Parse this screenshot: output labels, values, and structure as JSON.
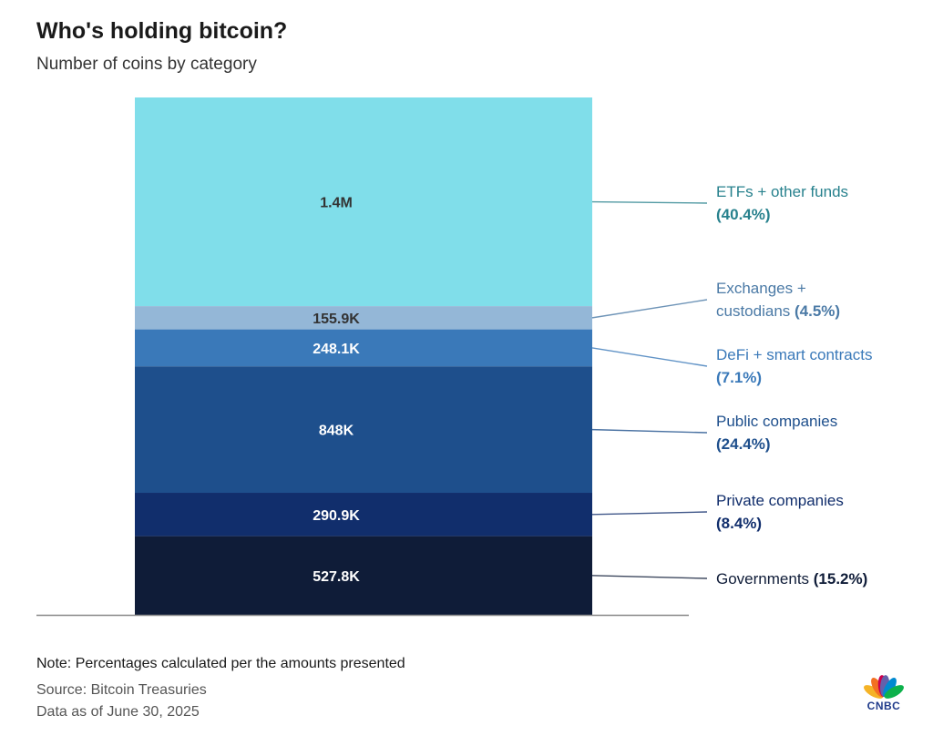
{
  "header": {
    "title": "Who's holding bitcoin?",
    "subtitle": "Number of coins by category"
  },
  "chart_data": {
    "type": "bar",
    "stacked": true,
    "categories": [
      {
        "label_line1": "ETFs + other funds",
        "label_line2": "",
        "pct": "(40.4%)",
        "value": 1400000,
        "value_label": "1.4M",
        "color": "#80deea",
        "label_color": "#27818d",
        "value_text_color": "#333333"
      },
      {
        "label_line1": "Exchanges +",
        "label_line2": "custodians",
        "pct": "(4.5%)",
        "value": 155900,
        "value_label": "155.9K",
        "color": "#94b7d7",
        "label_color": "#4b7aa6",
        "value_text_color": "#333333"
      },
      {
        "label_line1": "DeFi + smart contracts",
        "label_line2": "",
        "pct": "(7.1%)",
        "value": 248100,
        "value_label": "248.1K",
        "color": "#3a79b9",
        "label_color": "#3a79b9",
        "value_text_color": "#ffffff"
      },
      {
        "label_line1": "Public companies",
        "label_line2": "",
        "pct": "(24.4%)",
        "value": 848000,
        "value_label": "848K",
        "color": "#1e4f8c",
        "label_color": "#1e4f8c",
        "value_text_color": "#ffffff"
      },
      {
        "label_line1": "Private companies",
        "label_line2": "",
        "pct": "(8.4%)",
        "value": 290900,
        "value_label": "290.9K",
        "color": "#112e6c",
        "label_color": "#112e6c",
        "value_text_color": "#ffffff"
      },
      {
        "label_line1": "Governments",
        "label_line2": "",
        "pct": "(15.2%)",
        "value": 527800,
        "value_label": "527.8K",
        "color": "#0f1c38",
        "label_color": "#0f1c38",
        "value_text_color": "#ffffff"
      }
    ],
    "title": "Who's holding bitcoin?",
    "subtitle": "Number of coins by category",
    "legend_placement": "right"
  },
  "footer": {
    "note": "Note: Percentages calculated per the amounts presented",
    "source": "Source: Bitcoin Treasuries",
    "date": "Data as of June 30, 2025"
  },
  "logo": {
    "text": "CNBC",
    "petal_colors": [
      "#f5b326",
      "#f37021",
      "#cc004c",
      "#6460aa",
      "#0089d0",
      "#0db14b"
    ]
  }
}
